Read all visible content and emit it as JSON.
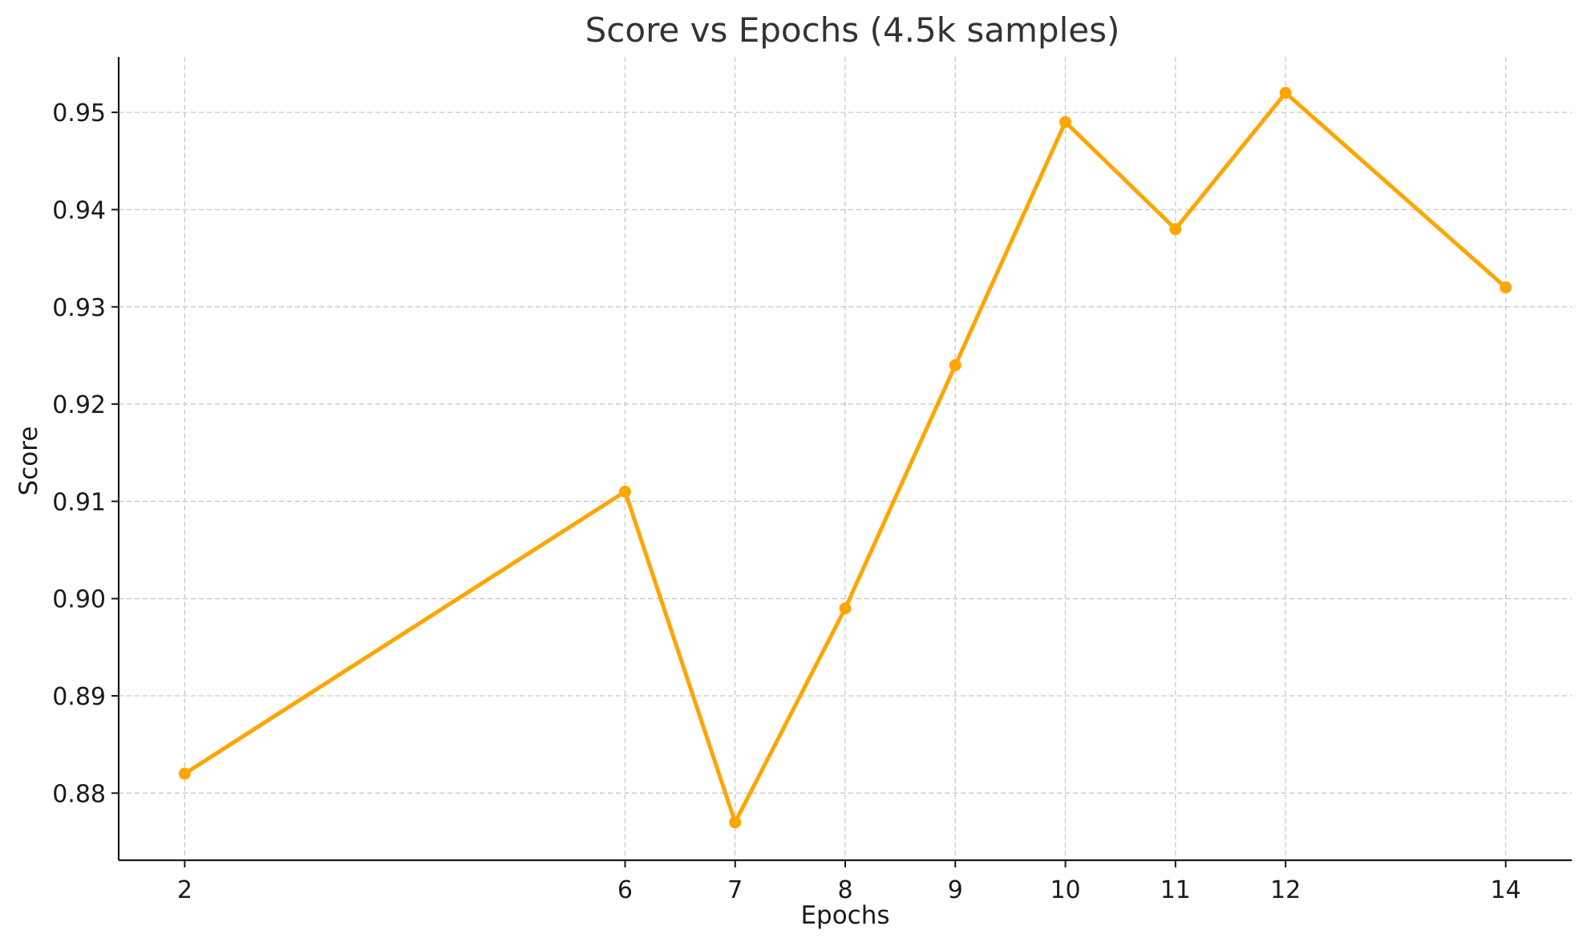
{
  "chart_data": {
    "type": "line",
    "title": "Score vs Epochs (4.5k samples)",
    "xlabel": "Epochs",
    "ylabel": "Score",
    "x": [
      2,
      6,
      7,
      8,
      9,
      10,
      11,
      12,
      14
    ],
    "series": [
      {
        "values": [
          0.882,
          0.911,
          0.877,
          0.899,
          0.924,
          0.949,
          0.938,
          0.952,
          0.932
        ],
        "color": "#FFA500"
      }
    ],
    "xticks": [
      2,
      6,
      7,
      8,
      9,
      10,
      11,
      12,
      14
    ],
    "xtick_labels": [
      "2",
      "6",
      "7",
      "8",
      "9",
      "10",
      "11",
      "12",
      "14"
    ],
    "yticks": [
      0.88,
      0.89,
      0.9,
      0.91,
      0.92,
      0.93,
      0.94,
      0.95
    ],
    "ytick_labels": [
      "0.88",
      "0.89",
      "0.90",
      "0.91",
      "0.92",
      "0.93",
      "0.94",
      "0.95"
    ],
    "xlim": [
      1.4,
      14.6
    ],
    "ylim": [
      0.8731,
      0.9557
    ],
    "grid": true,
    "legend": "none"
  }
}
